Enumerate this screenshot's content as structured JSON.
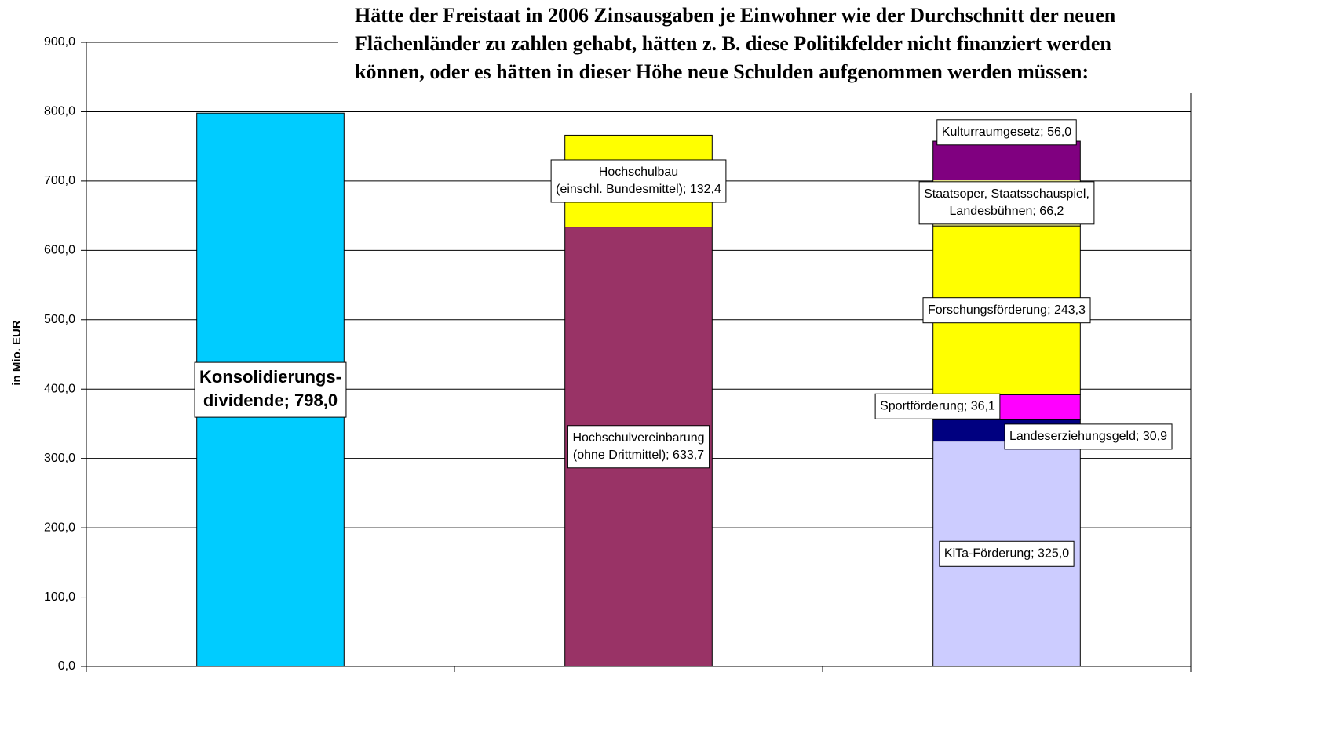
{
  "chart_data": {
    "type": "stacked_bar",
    "title": [
      "Hätte der Freistaat in 2006 Zinsausgaben je Einwohner wie der Durchschnitt der neuen",
      "Flächenländer zu zahlen gehabt, hätten z. B. diese Politikfelder nicht finanziert werden",
      "können, oder es hätten in dieser Höhe neue Schulden aufgenommen werden müssen:"
    ],
    "y_label": "in Mio. EUR",
    "categories": [
      null,
      null,
      null
    ],
    "series": [
      {
        "color": "#00CCFF",
        "values": [
          798.0,
          null,
          null
        ],
        "value_labels": [
          [
            "Konsolidierungs-",
            "dividende; 798,0"
          ],
          null,
          null
        ]
      },
      {
        "color": "#993366",
        "values": [
          null,
          633.7,
          null
        ],
        "value_labels": [
          null,
          [
            "Hochschulvereinbarung",
            "(ohne Drittmittel); 633,7"
          ],
          null
        ]
      },
      {
        "color": "#FFFF00",
        "values": [
          null,
          132.4,
          null
        ],
        "value_labels": [
          null,
          [
            "Hochschulbau",
            "(einschl. Bundesmittel); 132,4"
          ],
          null
        ]
      },
      {
        "color": "#CCCCFF",
        "values": [
          null,
          null,
          325.0
        ],
        "value_labels": [
          null,
          null,
          [
            "KiTa-Förderung; 325,0"
          ]
        ]
      },
      {
        "color": "#000080",
        "values": [
          null,
          null,
          30.9
        ],
        "value_labels": [
          null,
          null,
          [
            "Landeserziehungsgeld; 30,9"
          ]
        ]
      },
      {
        "color": "#FF00FF",
        "values": [
          null,
          null,
          36.1
        ],
        "value_labels": [
          null,
          null,
          [
            "Sportförderung; 36,1"
          ]
        ]
      },
      {
        "color": "#FFFF00",
        "values": [
          null,
          null,
          243.3
        ],
        "value_labels": [
          null,
          null,
          [
            "Forschungsförderung; 243,3"
          ]
        ]
      },
      {
        "color": "#FFFF99",
        "values": [
          null,
          null,
          66.2
        ],
        "value_labels": [
          null,
          null,
          [
            "Staatsoper, Staatsschauspiel,",
            "Landesbühnen; 66,2"
          ]
        ]
      },
      {
        "color": "#800080",
        "values": [
          null,
          null,
          56.0
        ],
        "value_labels": [
          null,
          null,
          [
            "Kulturraumgesetz; 56,0"
          ]
        ]
      }
    ],
    "ylim": [
      0,
      900
    ],
    "yticks": [
      {
        "value": 0,
        "label": "0,0"
      },
      {
        "value": 100,
        "label": "100,0"
      },
      {
        "value": 200,
        "label": "200,0"
      },
      {
        "value": 300,
        "label": "300,0"
      },
      {
        "value": 400,
        "label": "400,0"
      },
      {
        "value": 500,
        "label": "500,0"
      },
      {
        "value": 600,
        "label": "600,0"
      },
      {
        "value": 700,
        "label": "700,0"
      },
      {
        "value": 800,
        "label": "800,0"
      },
      {
        "value": 900,
        "label": "900,0"
      }
    ],
    "grid": true
  }
}
